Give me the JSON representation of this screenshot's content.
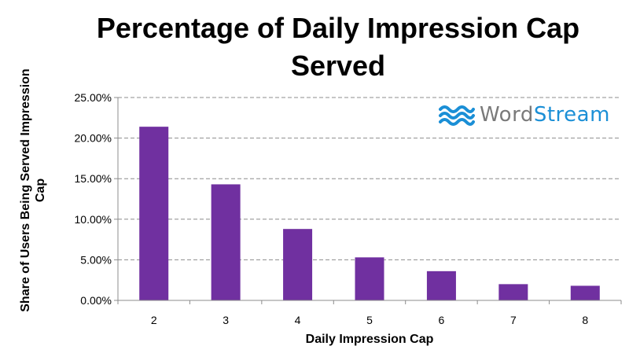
{
  "chart_data": {
    "type": "bar",
    "title": "Percentage of Daily Impression Cap Served",
    "xlabel": "Daily Impression Cap",
    "ylabel": "Share of Users Being Served Impression Cap",
    "categories": [
      "2",
      "3",
      "4",
      "5",
      "6",
      "7",
      "8"
    ],
    "values": [
      21.4,
      14.3,
      8.8,
      5.3,
      3.6,
      2.0,
      1.8
    ],
    "ylim": [
      0,
      25
    ],
    "yticks": [
      "0.00%",
      "5.00%",
      "10.00%",
      "15.00%",
      "20.00%",
      "25.00%"
    ],
    "grid": "horizontal-dashed",
    "bar_color": "#7030a0"
  },
  "logo": {
    "word": "Word",
    "stream": "Stream",
    "icon": "wave-icon",
    "color": "#1b8fd6"
  }
}
